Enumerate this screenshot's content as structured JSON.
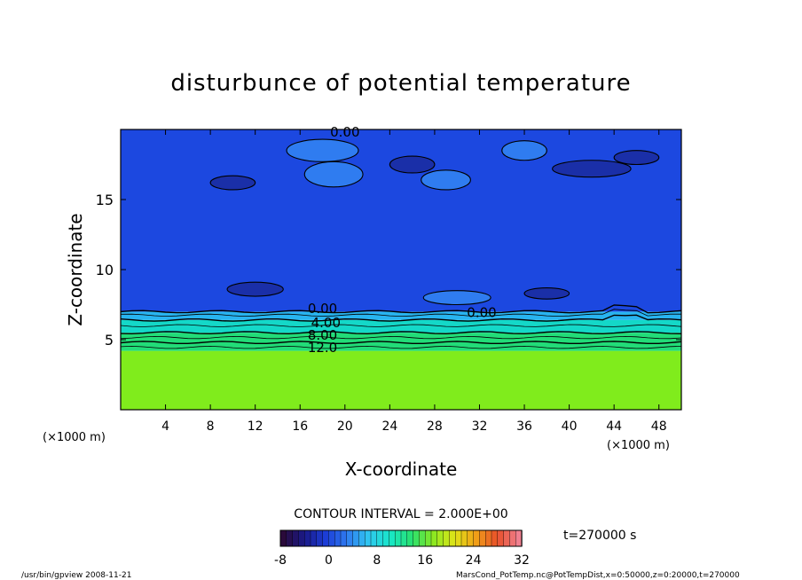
{
  "chart_data": {
    "type": "contour",
    "title": "disturbunce of potential temperature",
    "xlabel": "X-coordinate",
    "ylabel": "Z-coordinate",
    "x_unit_left": "(×1000 m)",
    "x_unit_right": "(×1000 m)",
    "xlim": [
      0,
      50
    ],
    "ylim": [
      0,
      20
    ],
    "x_ticks": [
      "4",
      "8",
      "12",
      "16",
      "20",
      "24",
      "28",
      "32",
      "36",
      "40",
      "44",
      "48"
    ],
    "y_ticks": [
      "5",
      "10",
      "15"
    ],
    "contour_labels": [
      "0.00",
      "0.00",
      "0.00",
      "4.00",
      "8.00",
      "12.0"
    ],
    "contour_interval_text": "CONTOUR INTERVAL = 2.000E+00",
    "colorbar": {
      "min": -8,
      "max": 32,
      "tick_labels": [
        "-8",
        "0",
        "8",
        "16",
        "24",
        "32"
      ],
      "colors": [
        "#2a0a3a",
        "#1a1a8a",
        "#1c3ed8",
        "#2f7cf0",
        "#30c8f0",
        "#18e8c8",
        "#28e070",
        "#8ae822",
        "#e0e418",
        "#f0a018",
        "#e8502a",
        "#f08090"
      ]
    },
    "time_label": "t=270000 s",
    "regions": [
      {
        "z_from": 0,
        "z_to": 4.2,
        "value": 16,
        "color": "#80ec1c"
      },
      {
        "z_from": 4.2,
        "z_to": 5.5,
        "value": 12,
        "color": "#22dc78"
      },
      {
        "z_from": 5.5,
        "z_to": 6.4,
        "value": 8,
        "color": "#14d8c8"
      },
      {
        "z_from": 6.4,
        "z_to": 7.0,
        "value": 4,
        "color": "#28b4f0"
      },
      {
        "z_from": 7.0,
        "z_to": 20,
        "value": 0,
        "color": "#1c48e0"
      }
    ]
  },
  "footer": {
    "left": "/usr/bin/gpview   2008-11-21",
    "right": "MarsCond_PotTemp.nc@PotTempDist,x=0:50000,z=0:20000,t=270000"
  }
}
